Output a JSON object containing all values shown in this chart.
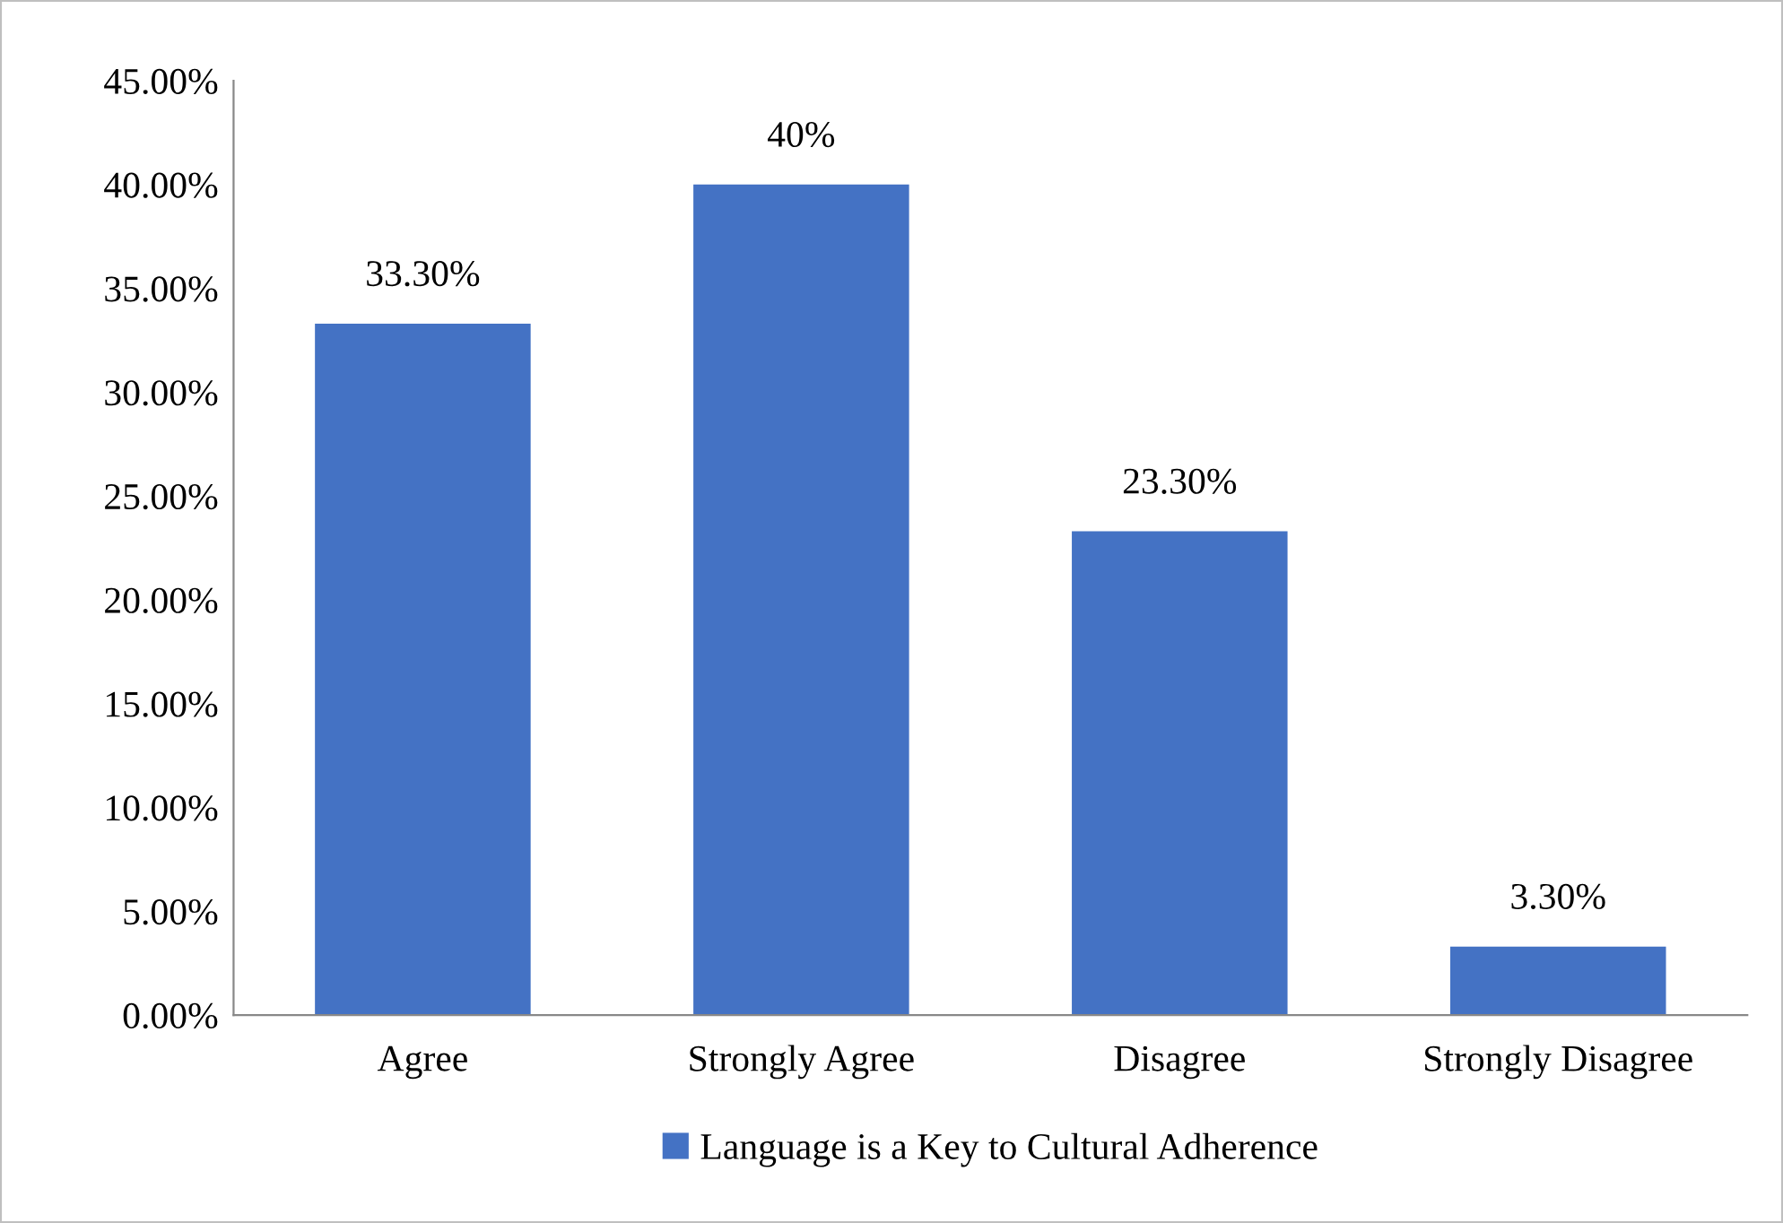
{
  "chart_data": {
    "type": "bar",
    "categories": [
      "Agree",
      "Strongly Agree",
      "Disagree",
      "Strongly Disagree"
    ],
    "series": [
      {
        "name": "Language is a Key to Cultural Adherence",
        "color": "#4472c4",
        "values": [
          33.3,
          40,
          23.3,
          3.3
        ],
        "value_labels": [
          "33.30%",
          "40%",
          "23.30%",
          "3.30%"
        ]
      }
    ],
    "ylim": [
      0,
      45
    ],
    "yticks": [
      {
        "value": 0,
        "label": "0.00%"
      },
      {
        "value": 5,
        "label": "5.00%"
      },
      {
        "value": 10,
        "label": "10.00%"
      },
      {
        "value": 15,
        "label": "15.00%"
      },
      {
        "value": 20,
        "label": "20.00%"
      },
      {
        "value": 25,
        "label": "25.00%"
      },
      {
        "value": 30,
        "label": "30.00%"
      },
      {
        "value": 35,
        "label": "35.00%"
      },
      {
        "value": 40,
        "label": "40.00%"
      },
      {
        "value": 45,
        "label": "45.00%"
      }
    ],
    "grid": false,
    "legend": "bottom"
  }
}
